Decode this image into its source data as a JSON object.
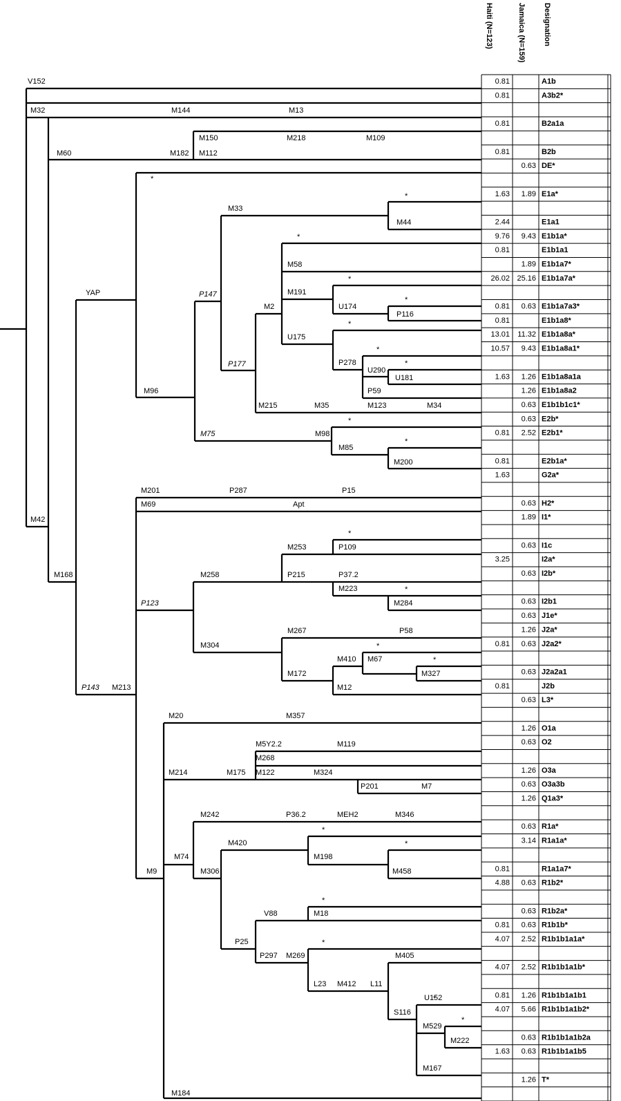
{
  "header": {
    "columns": [
      "Haiti (N=123)",
      "Jamaica (N=159)",
      "Designation"
    ]
  },
  "table": {
    "rows": [
      [
        0.81,
        null,
        "A1b"
      ],
      [
        0.81,
        null,
        "A3b2*"
      ],
      [
        null,
        null,
        null
      ],
      [
        0.81,
        null,
        "B2a1a"
      ],
      [
        null,
        null,
        null
      ],
      [
        0.81,
        null,
        "B2b"
      ],
      [
        null,
        0.63,
        "DE*"
      ],
      [
        null,
        null,
        null
      ],
      [
        1.63,
        1.89,
        "E1a*"
      ],
      [
        null,
        null,
        null
      ],
      [
        2.44,
        null,
        "E1a1"
      ],
      [
        9.76,
        9.43,
        "E1b1a*"
      ],
      [
        0.81,
        null,
        "E1b1a1"
      ],
      [
        null,
        1.89,
        "E1b1a7*"
      ],
      [
        26.02,
        25.16,
        "E1b1a7a*"
      ],
      [
        null,
        null,
        null
      ],
      [
        0.81,
        0.63,
        "E1b1a7a3*"
      ],
      [
        0.81,
        null,
        "E1b1a8*"
      ],
      [
        13.01,
        11.32,
        "E1b1a8a*"
      ],
      [
        10.57,
        9.43,
        "E1b1a8a1*"
      ],
      [
        null,
        null,
        null
      ],
      [
        1.63,
        1.26,
        "E1b1a8a1a"
      ],
      [
        null,
        1.26,
        "E1b1a8a2"
      ],
      [
        null,
        0.63,
        "E1b1b1c1*"
      ],
      [
        null,
        0.63,
        "E2b*"
      ],
      [
        0.81,
        2.52,
        "E2b1*"
      ],
      [
        null,
        null,
        null
      ],
      [
        0.81,
        null,
        "E2b1a*"
      ],
      [
        1.63,
        null,
        "G2a*"
      ],
      [
        null,
        null,
        null
      ],
      [
        null,
        0.63,
        "H2*"
      ],
      [
        null,
        1.89,
        "I1*"
      ],
      [
        null,
        null,
        null
      ],
      [
        null,
        0.63,
        "I1c"
      ],
      [
        3.25,
        null,
        "I2a*"
      ],
      [
        null,
        0.63,
        "I2b*"
      ],
      [
        null,
        null,
        null
      ],
      [
        null,
        0.63,
        "I2b1"
      ],
      [
        null,
        0.63,
        "J1e*"
      ],
      [
        null,
        1.26,
        "J2a*"
      ],
      [
        0.81,
        0.63,
        "J2a2*"
      ],
      [
        null,
        null,
        null
      ],
      [
        null,
        0.63,
        "J2a2a1"
      ],
      [
        0.81,
        null,
        "J2b"
      ],
      [
        null,
        0.63,
        "L3*"
      ],
      [
        null,
        null,
        null
      ],
      [
        null,
        1.26,
        "O1a"
      ],
      [
        null,
        0.63,
        "O2"
      ],
      [
        null,
        null,
        null
      ],
      [
        null,
        1.26,
        "O3a"
      ],
      [
        null,
        0.63,
        "O3a3b"
      ],
      [
        null,
        1.26,
        "Q1a3*"
      ],
      [
        null,
        null,
        null
      ],
      [
        null,
        0.63,
        "R1a*"
      ],
      [
        null,
        3.14,
        "R1a1a*"
      ],
      [
        null,
        null,
        null
      ],
      [
        0.81,
        null,
        "R1a1a7*"
      ],
      [
        4.88,
        0.63,
        "R1b2*"
      ],
      [
        null,
        null,
        null
      ],
      [
        null,
        0.63,
        "R1b2a*"
      ],
      [
        0.81,
        0.63,
        "R1b1b*"
      ],
      [
        4.07,
        2.52,
        "R1b1b1a1a*"
      ],
      [
        null,
        null,
        null
      ],
      [
        4.07,
        2.52,
        "R1b1b1a1b*"
      ],
      [
        null,
        null,
        null
      ],
      [
        0.81,
        1.26,
        "R1b1b1a1b1"
      ],
      [
        4.07,
        5.66,
        "R1b1b1a1b2*"
      ],
      [
        null,
        null,
        null
      ],
      [
        null,
        0.63,
        "R1b1b1a1b2a"
      ],
      [
        1.63,
        0.63,
        "R1b1b1a1b5"
      ],
      [
        null,
        null,
        null
      ],
      [
        null,
        1.26,
        "T*"
      ],
      [
        null,
        null,
        null
      ]
    ]
  },
  "tree": {
    "labels": [
      "V152",
      "M32",
      "M144",
      "M13",
      "M150",
      "M218",
      "M109",
      "M60",
      "M182",
      "M112",
      "*",
      "M33",
      "*",
      "M44",
      "*",
      "M58",
      "P147",
      "YAP",
      "M191",
      "*",
      "U174",
      "*",
      "M2",
      "P116",
      "U175",
      "*",
      "*",
      "P278",
      "U290",
      "*",
      "P177",
      "U181",
      "M96",
      "P59",
      "M215",
      "M35",
      "M123",
      "M34",
      "M75",
      "M98",
      "*",
      "M85",
      "*",
      "M200",
      "M201",
      "P287",
      "P15",
      "M69",
      "Apt",
      "M42",
      "*",
      "M253",
      "P109",
      "M258",
      "P215",
      "P37.2",
      "M168",
      "M223",
      "*",
      "P123",
      "M284",
      "M267",
      "P58",
      "M304",
      "*",
      "M410",
      "M67",
      "*",
      "M172",
      "M327",
      "M12",
      "P143",
      "M213",
      "M20",
      "M357",
      "M5Y2.2",
      "M119",
      "M268",
      "M214",
      "M175",
      "M122",
      "M324",
      "P201",
      "M7",
      "M242",
      "P36.2",
      "MEH2",
      "M346",
      "M420",
      "*",
      "M74",
      "M198",
      "*",
      "M9",
      "M306",
      "M458",
      "*",
      "V88",
      "M18",
      "P25",
      "*",
      "P297",
      "M269",
      "M405",
      "L23",
      "M412",
      "L11",
      "*",
      "U152",
      "S116",
      "*",
      "M529",
      "M222",
      "M167",
      "M184"
    ]
  }
}
